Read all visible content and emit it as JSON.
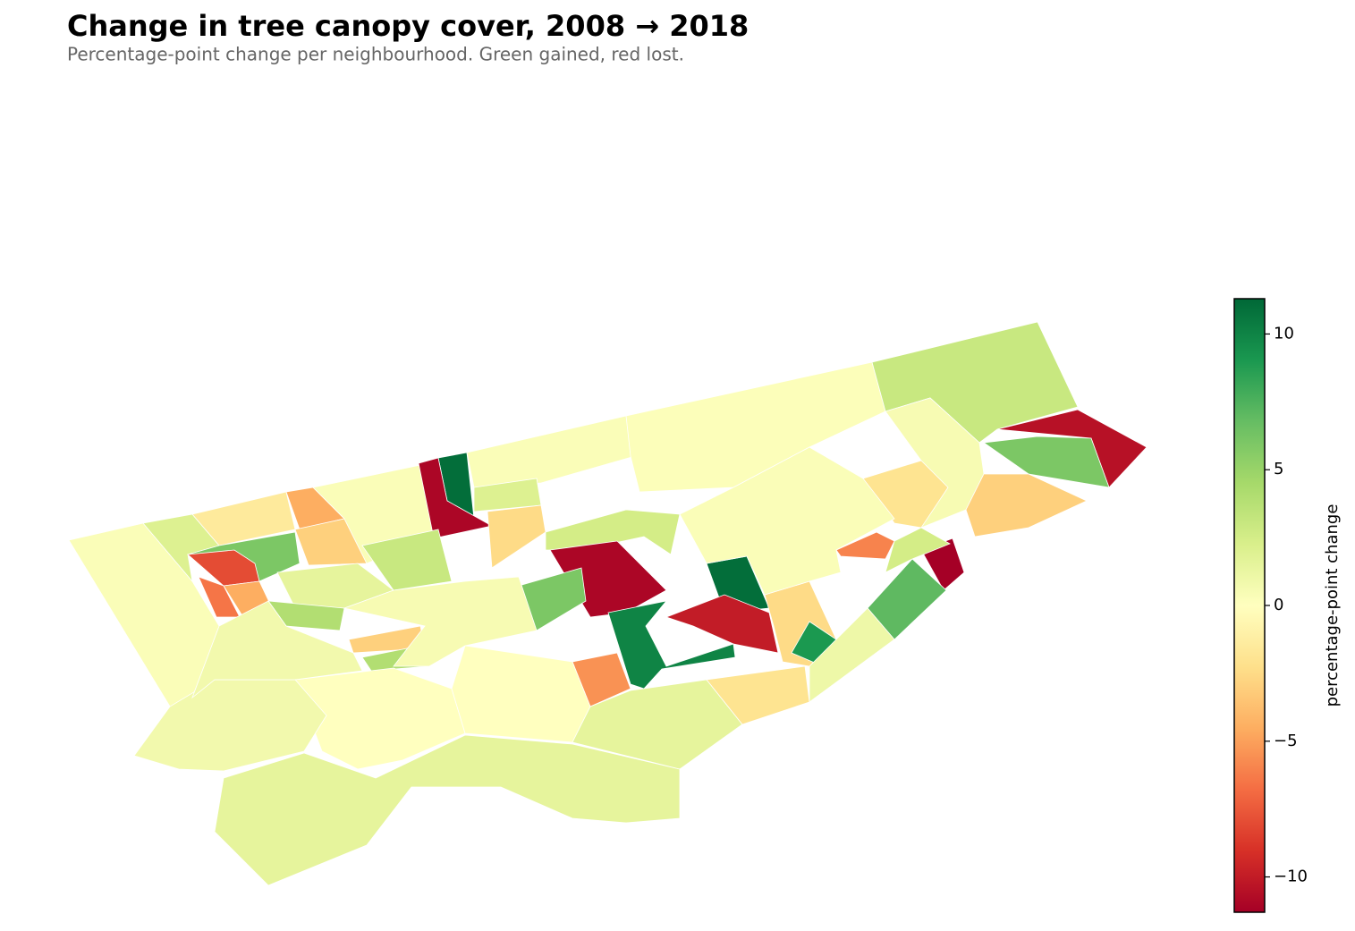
{
  "chart_data": {
    "type": "choropleth",
    "title": "Change in tree canopy cover, 2008 → 2018",
    "subtitle": "Percentage-point change per neighbourhood. Green gained, red lost.",
    "colormap": "RdYlGn",
    "vlim": [
      -11.3,
      11.3
    ],
    "colorbar": {
      "label": "percentage-point change",
      "ticks": [
        {
          "value": -10,
          "label": "−10"
        },
        {
          "value": -5,
          "label": "−5"
        },
        0,
        5,
        10
      ]
    },
    "values": [
      0.3,
      2,
      -1.5,
      -4.5,
      6,
      -8,
      -6.5,
      -4.5,
      -3,
      0.3,
      11,
      -11,
      0.3,
      2,
      -2.5,
      0.2,
      3,
      -10.5,
      6,
      0.5,
      -2,
      -3,
      -11.5,
      7,
      -6,
      2.5,
      -11,
      11,
      -10,
      10,
      -2.5,
      9,
      -5.5,
      6,
      1.5,
      3,
      4,
      -3,
      4,
      -3,
      1.5,
      0,
      0.8,
      0,
      1.5,
      -2,
      1,
      0.5,
      0.8,
      0.3,
      2.5
    ]
  }
}
